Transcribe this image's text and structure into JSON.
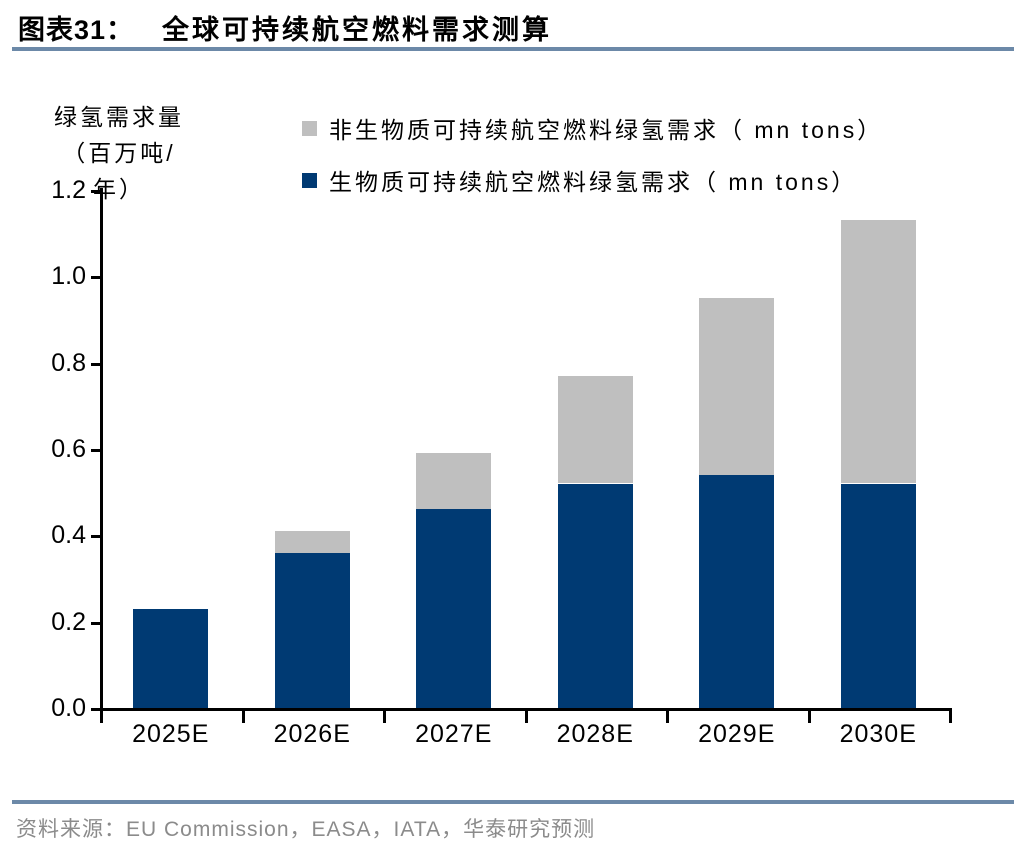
{
  "figure": {
    "label": "图表31：",
    "title": "全球可持续航空燃料需求测算"
  },
  "legend": {
    "items": [
      {
        "color_key": "nonbio_gray",
        "label": "非生物质可持续航空燃料绿氢需求（ mn tons）"
      },
      {
        "color_key": "bio_blue",
        "label": "生物质可持续航空燃料绿氢需求（ mn tons）"
      }
    ]
  },
  "colors": {
    "bio_blue": "#003a73",
    "nonbio_gray": "#bfbfbf",
    "rule_blue": "#6c89a8",
    "axis_black": "#000000",
    "source_gray": "#8b8b8b"
  },
  "chart_data": {
    "type": "bar",
    "stacked": true,
    "title": "全球可持续航空燃料需求测算",
    "categories": [
      "2025E",
      "2026E",
      "2027E",
      "2028E",
      "2029E",
      "2030E"
    ],
    "series": [
      {
        "name": "生物质可持续航空燃料绿氢需求（ mn tons）",
        "color_key": "bio_blue",
        "values": [
          0.23,
          0.36,
          0.46,
          0.52,
          0.54,
          0.52
        ]
      },
      {
        "name": "非生物质可持续航空燃料绿氢需求（ mn tons）",
        "color_key": "nonbio_gray",
        "values": [
          0.0,
          0.05,
          0.13,
          0.25,
          0.41,
          0.61
        ]
      }
    ],
    "totals": [
      0.23,
      0.41,
      0.59,
      0.77,
      0.95,
      1.13
    ],
    "y_title_lines": [
      "绿氢需求量",
      "（百万吨/",
      "年）"
    ],
    "ylabel": "绿氢需求量（百万吨/年）",
    "ylim": [
      0,
      1.2
    ],
    "yticks": [
      0.0,
      0.2,
      0.4,
      0.6,
      0.8,
      1.0,
      1.2
    ],
    "grid": false,
    "legend_position": "top-right"
  },
  "source": "资料来源：EU Commission，EASA，IATA，华泰研究预测"
}
